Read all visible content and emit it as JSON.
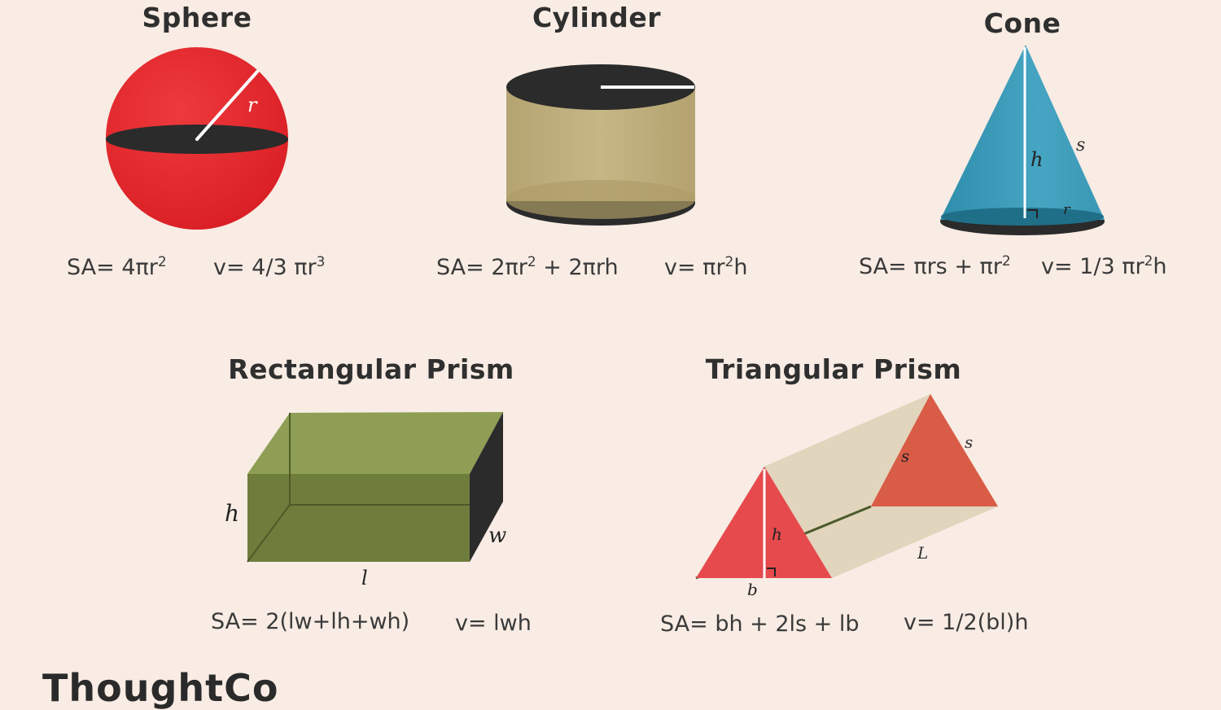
{
  "shapes": {
    "sphere": {
      "title": "Sphere",
      "radius_label": "r",
      "sa": "SA= 4πr",
      "sa_exp": "2",
      "v": "v= 4/3 πr",
      "v_exp": "3"
    },
    "cylinder": {
      "title": "Cylinder",
      "sa": "SA= 2πr",
      "sa_exp": "2",
      "sa_rest": "+ 2πrh",
      "v": "v= πr",
      "v_exp": "2",
      "v_rest": "h"
    },
    "cone": {
      "title": "Cone",
      "label_s": "s",
      "label_h": "h",
      "label_r": "r",
      "sa": "SA= πrs + πr",
      "sa_exp": "2",
      "v": "v= 1/3 πr",
      "v_exp": "2",
      "v_rest": "h"
    },
    "rect_prism": {
      "title": "Rectangular Prism",
      "label_h": "h",
      "label_w": "w",
      "label_l": "l",
      "sa": "SA= 2(lw+lh+wh)",
      "v": "v= lwh"
    },
    "tri_prism": {
      "title": "Triangular Prism",
      "label_s1": "s",
      "label_s2": "s",
      "label_h": "h",
      "label_b": "b",
      "label_l": "L",
      "sa": "SA= bh + 2ls + lb",
      "v": "v= 1/2(bl)h"
    }
  },
  "colors": {
    "background": "#f8ece4",
    "sphere_red": "#e3262b",
    "dark": "#2b2b2b",
    "cylinder_tan": "#c1b07e",
    "cone_teal": "#3a9ab8",
    "prism_green": "#6e7d3c",
    "tri_red": "#e34a4a",
    "tri_tan": "#ddcfb6"
  },
  "logo": {
    "text": "ThoughtCo"
  }
}
